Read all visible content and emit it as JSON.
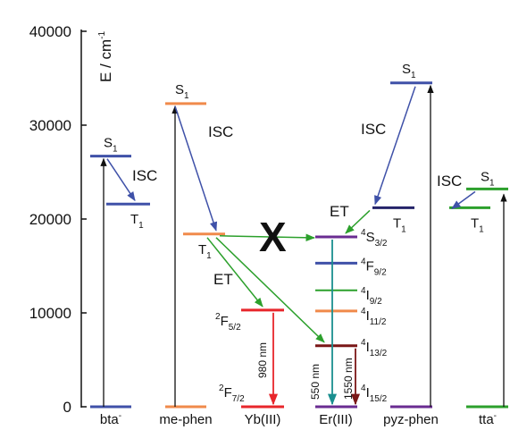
{
  "axis": {
    "label": "E / cm",
    "label_sup": "-1",
    "ticks": [
      {
        "value": 0,
        "text": "0"
      },
      {
        "value": 10000,
        "text": "10000"
      },
      {
        "value": 20000,
        "text": "20000"
      },
      {
        "value": 30000,
        "text": "30000"
      },
      {
        "value": 40000,
        "text": "40000"
      }
    ],
    "range": [
      0,
      40000
    ]
  },
  "categories": [
    {
      "id": "bta",
      "base": "bta",
      "sup": "-"
    },
    {
      "id": "mephen",
      "base": "me-phen",
      "sup": ""
    },
    {
      "id": "yb",
      "base": "Yb(III)",
      "sup": ""
    },
    {
      "id": "er",
      "base": "Er(III)",
      "sup": ""
    },
    {
      "id": "pyzphen",
      "base": "pyz-phen",
      "sup": ""
    },
    {
      "id": "tta",
      "base": "tta",
      "sup": "-"
    }
  ],
  "colors": {
    "blue": "#3f51a8",
    "orange": "#f08a4b",
    "green": "#2ca02c",
    "red": "#e8262b",
    "purple": "#6a2c91",
    "teal": "#1a8f8f",
    "darkred": "#7a1717",
    "navy": "#25246a",
    "black": "#111111"
  },
  "levels": {
    "bta_ground": 0,
    "bta_s1": 26700,
    "bta_t1": 21600,
    "mephen_ground": 0,
    "mephen_s1": 32300,
    "mephen_t1": 18400,
    "yb_ground": 0,
    "yb_excited": 10300,
    "er_i152": 0,
    "er_i132": 6500,
    "er_i112": 10200,
    "er_i92": 12400,
    "er_f92": 15300,
    "er_s32": 18100,
    "pyzphen_ground": 0,
    "pyzphen_s1": 34500,
    "pyzphen_t1": 21200,
    "tta_ground": 0,
    "tta_s1": 23200,
    "tta_t1": 21200
  },
  "labels": {
    "bta_s1": {
      "base": "S",
      "sub": "1"
    },
    "bta_t1": {
      "base": "T",
      "sub": "1"
    },
    "mephen_s1": {
      "base": "S",
      "sub": "1"
    },
    "mephen_t1": {
      "base": "T",
      "sub": "1"
    },
    "pyzphen_s1": {
      "base": "S",
      "sub": "1"
    },
    "pyzphen_t1": {
      "base": "T",
      "sub": "1"
    },
    "tta_s1": {
      "base": "S",
      "sub": "1"
    },
    "tta_t1": {
      "base": "T",
      "sub": "1"
    },
    "yb_f52": {
      "sup": "2",
      "base": "F",
      "sub": "5/2"
    },
    "yb_f72": {
      "sup": "2",
      "base": "F",
      "sub": "7/2"
    },
    "er_s32": {
      "sup": "4",
      "base": "S",
      "sub": "3/2"
    },
    "er_f92": {
      "sup": "4",
      "base": "F",
      "sub": "9/2"
    },
    "er_i92": {
      "sup": "4",
      "base": "I",
      "sub": "9/2"
    },
    "er_i112": {
      "sup": "4",
      "base": "I",
      "sub": "11/2"
    },
    "er_i132": {
      "sup": "4",
      "base": "I",
      "sub": "13/2"
    },
    "er_i152": {
      "sup": "4",
      "base": "I",
      "sub": "15/2"
    }
  },
  "annotations": {
    "isc": "ISC",
    "et": "ET",
    "cross": "X",
    "yb_emission": "980 nm",
    "er_emission_green": "550 nm",
    "er_emission_ir": "1550 nm"
  }
}
